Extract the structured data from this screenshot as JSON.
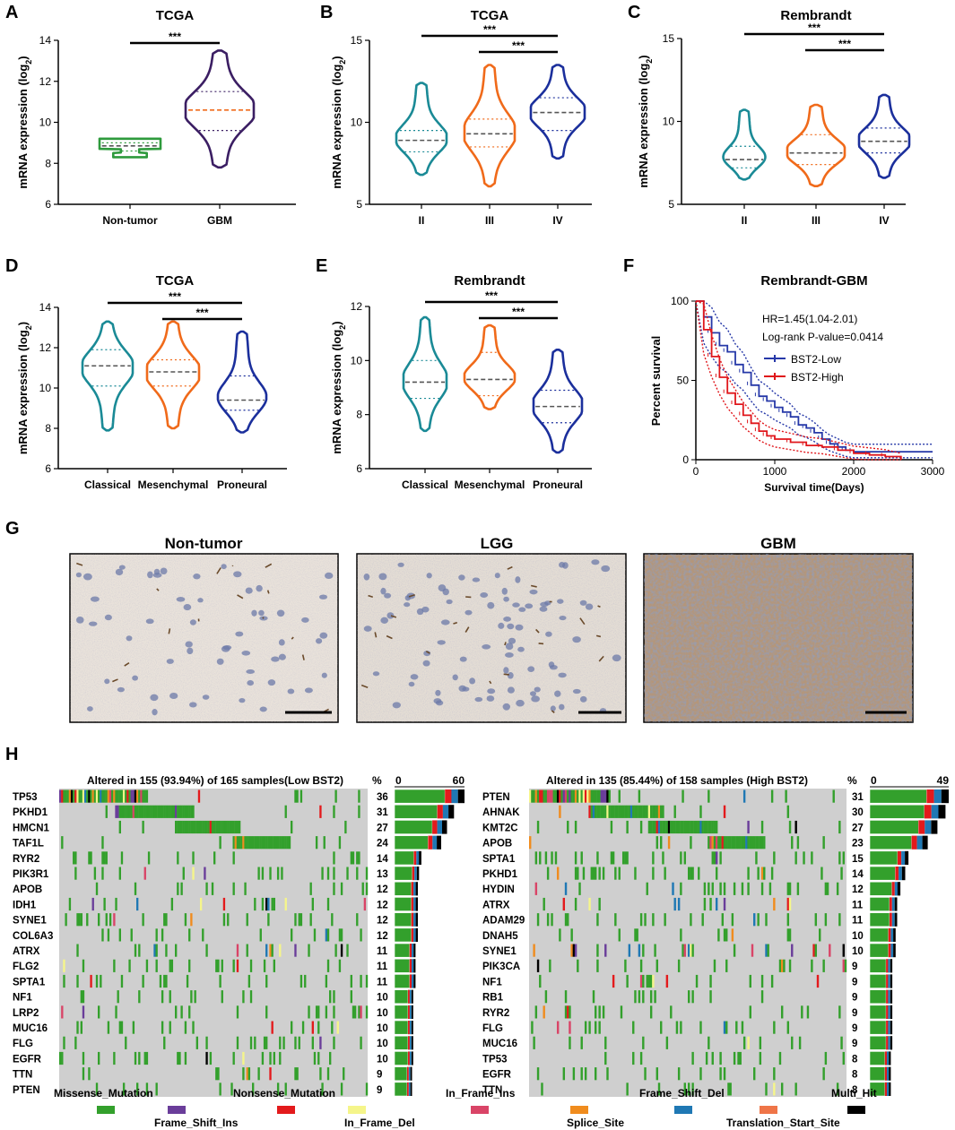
{
  "panels": {
    "A": {
      "label": "A",
      "title": "TCGA"
    },
    "B": {
      "label": "B",
      "title": "TCGA"
    },
    "C": {
      "label": "C",
      "title": "Rembrandt"
    },
    "D": {
      "label": "D",
      "title": "TCGA"
    },
    "E": {
      "label": "E",
      "title": "Rembrandt"
    },
    "F": {
      "label": "F",
      "title": "Rembrandt-GBM"
    },
    "G": {
      "label": "G"
    },
    "H": {
      "label": "H"
    }
  },
  "y_axis_label": "mRNA expression (log2)",
  "significance": "***",
  "colors": {
    "teal": "#1a8a96",
    "orange": "#f06a1a",
    "navy": "#1b2f9c",
    "green": "#2e9a3c",
    "purple": "#3b1e63",
    "red": "#e0161b",
    "blue": "#2638a8"
  },
  "chart_data": [
    {
      "id": "A",
      "type": "violin",
      "title": "TCGA",
      "ylabel": "mRNA expression (log2)",
      "ylim": [
        6,
        14
      ],
      "yticks": [
        6,
        8,
        10,
        12,
        14
      ],
      "groups": [
        {
          "name": "Non-tumor",
          "color": "#2e9a3c",
          "min": 8.3,
          "max": 9.2,
          "median": 8.85,
          "q1": 8.6,
          "q3": 9.0,
          "shape": "vase"
        },
        {
          "name": "GBM",
          "color": "#3b1e63",
          "min": 7.8,
          "max": 13.5,
          "median": 10.6,
          "q1": 9.6,
          "q3": 11.5,
          "medianColor": "#f06a1a"
        }
      ],
      "brackets": [
        {
          "from": 0,
          "to": 1,
          "label": "***"
        }
      ]
    },
    {
      "id": "B",
      "type": "violin",
      "title": "TCGA",
      "ylabel": "mRNA expression (log2)",
      "ylim": [
        5,
        15
      ],
      "yticks": [
        5,
        10,
        15
      ],
      "groups": [
        {
          "name": "II",
          "color": "#1a8a96",
          "min": 6.8,
          "max": 12.4,
          "median": 8.9,
          "q1": 8.2,
          "q3": 9.5
        },
        {
          "name": "III",
          "color": "#f06a1a",
          "min": 6.1,
          "max": 13.5,
          "median": 9.3,
          "q1": 8.5,
          "q3": 10.2
        },
        {
          "name": "IV",
          "color": "#1b2f9c",
          "min": 7.8,
          "max": 13.5,
          "median": 10.6,
          "q1": 9.5,
          "q3": 11.5
        }
      ],
      "brackets": [
        {
          "from": 0,
          "to": 2,
          "label": "***"
        },
        {
          "from": 1,
          "to": 2,
          "label": "***"
        }
      ]
    },
    {
      "id": "C",
      "type": "violin",
      "title": "Rembrandt",
      "ylabel": "mRNA expression (log2)",
      "ylim": [
        5,
        15
      ],
      "yticks": [
        5,
        10,
        15
      ],
      "groups": [
        {
          "name": "II",
          "color": "#1a8a96",
          "min": 6.5,
          "max": 10.7,
          "median": 7.7,
          "q1": 7.2,
          "q3": 8.5
        },
        {
          "name": "III",
          "color": "#f06a1a",
          "min": 6.1,
          "max": 11.0,
          "median": 8.1,
          "q1": 7.4,
          "q3": 9.2
        },
        {
          "name": "IV",
          "color": "#1b2f9c",
          "min": 6.6,
          "max": 11.6,
          "median": 8.8,
          "q1": 8.1,
          "q3": 9.6
        }
      ],
      "brackets": [
        {
          "from": 0,
          "to": 2,
          "label": "***"
        },
        {
          "from": 1,
          "to": 2,
          "label": "***"
        }
      ]
    },
    {
      "id": "D",
      "type": "violin",
      "title": "TCGA",
      "ylabel": "mRNA expression (log2)",
      "ylim": [
        6,
        14
      ],
      "yticks": [
        6,
        8,
        10,
        12,
        14
      ],
      "groups": [
        {
          "name": "Classical",
          "color": "#1a8a96",
          "min": 7.9,
          "max": 13.3,
          "median": 11.1,
          "q1": 10.1,
          "q3": 11.9
        },
        {
          "name": "Mesenchymal",
          "color": "#f06a1a",
          "min": 8.0,
          "max": 13.3,
          "median": 10.8,
          "q1": 10.1,
          "q3": 11.4
        },
        {
          "name": "Proneural",
          "color": "#1b2f9c",
          "min": 7.8,
          "max": 12.8,
          "median": 9.4,
          "q1": 8.9,
          "q3": 10.6
        }
      ],
      "brackets": [
        {
          "from": 0,
          "to": 2,
          "label": "***"
        },
        {
          "from": 1,
          "to": 2,
          "label": "***"
        }
      ]
    },
    {
      "id": "E",
      "type": "violin",
      "title": "Rembrandt",
      "ylabel": "mRNA expression (log2)",
      "ylim": [
        6,
        12
      ],
      "yticks": [
        6,
        8,
        10,
        12
      ],
      "groups": [
        {
          "name": "Classical",
          "color": "#1a8a96",
          "min": 7.4,
          "max": 11.6,
          "median": 9.2,
          "q1": 8.6,
          "q3": 10.0
        },
        {
          "name": "Mesenchymal",
          "color": "#f06a1a",
          "min": 8.2,
          "max": 11.3,
          "median": 9.3,
          "q1": 8.7,
          "q3": 10.3
        },
        {
          "name": "Proneural",
          "color": "#1b2f9c",
          "min": 6.6,
          "max": 10.4,
          "median": 8.3,
          "q1": 7.7,
          "q3": 8.9
        }
      ],
      "brackets": [
        {
          "from": 0,
          "to": 2,
          "label": "***"
        },
        {
          "from": 1,
          "to": 2,
          "label": "***"
        }
      ]
    },
    {
      "id": "F",
      "type": "line",
      "title": "Rembrandt-GBM",
      "xlabel": "Survival time(Days)",
      "ylabel": "Percent survival",
      "xlim": [
        0,
        3000
      ],
      "ylim": [
        0,
        100
      ],
      "xticks": [
        0,
        1000,
        2000,
        3000
      ],
      "yticks": [
        0,
        50,
        100
      ],
      "annotation": [
        "HR=1.45(1.04-2.01)",
        "Log-rank P-value=0.0414"
      ],
      "series": [
        {
          "name": "BST2-Low",
          "color": "#2638a8",
          "x": [
            0,
            100,
            200,
            300,
            400,
            500,
            600,
            700,
            800,
            900,
            1000,
            1100,
            1200,
            1300,
            1400,
            1500,
            1600,
            1700,
            1800,
            1900,
            2000,
            3000
          ],
          "y": [
            100,
            90,
            80,
            72,
            68,
            60,
            55,
            47,
            40,
            37,
            33,
            30,
            27,
            22,
            20,
            17,
            13,
            10,
            8,
            6,
            5,
            5
          ]
        },
        {
          "name": "BST2-High",
          "color": "#e0161b",
          "x": [
            0,
            100,
            200,
            300,
            400,
            500,
            600,
            700,
            800,
            900,
            1000,
            1200,
            1400,
            1600,
            1800,
            2000,
            2200,
            2400,
            2600
          ],
          "y": [
            100,
            82,
            65,
            52,
            42,
            35,
            28,
            23,
            18,
            15,
            13,
            11,
            9,
            8,
            6,
            4,
            3,
            2,
            0
          ]
        }
      ]
    },
    {
      "id": "H-low",
      "type": "oncoplot",
      "header": "Altered in 155 (93.94%) of 165 samples(Low BST2)",
      "pct_label": "%",
      "bar_axis": [
        "0",
        "60"
      ],
      "genes": [
        "TP53",
        "PKHD1",
        "HMCN1",
        "TAF1L",
        "RYR2",
        "PIK3R1",
        "APOB",
        "IDH1",
        "SYNE1",
        "COL6A3",
        "ATRX",
        "FLG2",
        "SPTA1",
        "NF1",
        "LRP2",
        "MUC16",
        "FLG",
        "EGFR",
        "TTN",
        "PTEN"
      ],
      "percents": [
        36,
        31,
        27,
        24,
        14,
        13,
        12,
        12,
        12,
        12,
        11,
        11,
        11,
        10,
        10,
        10,
        10,
        10,
        9,
        9
      ],
      "counts": [
        60,
        51,
        45,
        40,
        23,
        21,
        20,
        20,
        20,
        20,
        18,
        18,
        18,
        16,
        16,
        16,
        16,
        16,
        15,
        15
      ]
    },
    {
      "id": "H-high",
      "type": "oncoplot",
      "header": "Altered in 135 (85.44%) of 158 samples (High BST2)",
      "pct_label": "%",
      "bar_axis": [
        "0",
        "49"
      ],
      "genes": [
        "PTEN",
        "AHNAK",
        "KMT2C",
        "APOB",
        "SPTA1",
        "PKHD1",
        "HYDIN",
        "ATRX",
        "ADAM29",
        "DNAH5",
        "SYNE1",
        "PIK3CA",
        "NF1",
        "RB1",
        "RYR2",
        "FLG",
        "MUC16",
        "TP53",
        "EGFR",
        "TTN"
      ],
      "percents": [
        31,
        30,
        27,
        23,
        15,
        14,
        12,
        11,
        11,
        10,
        10,
        9,
        9,
        9,
        9,
        9,
        9,
        8,
        8,
        8
      ],
      "counts": [
        49,
        47,
        42,
        36,
        24,
        22,
        19,
        17,
        17,
        16,
        16,
        14,
        14,
        14,
        14,
        14,
        14,
        13,
        13,
        13
      ]
    }
  ],
  "ihc": {
    "labels": [
      "Non-tumor",
      "LGG",
      "GBM"
    ]
  },
  "legend": [
    {
      "name": "Missense_Mutation",
      "color": "#33a02c"
    },
    {
      "name": "Frame_Shift_Ins",
      "color": "#6a3d9a"
    },
    {
      "name": "Nonsense_Mutation",
      "color": "#e31a1c"
    },
    {
      "name": "In_Frame_Del",
      "color": "#f5f58a"
    },
    {
      "name": "In_Frame_Ins",
      "color": "#d94467"
    },
    {
      "name": "Splice_Site",
      "color": "#f08c1e"
    },
    {
      "name": "Frame_Shift_Del",
      "color": "#1f78b4"
    },
    {
      "name": "Translation_Start_Site",
      "color": "#ef7548"
    },
    {
      "name": "Multi_Hit",
      "color": "#000000"
    }
  ]
}
